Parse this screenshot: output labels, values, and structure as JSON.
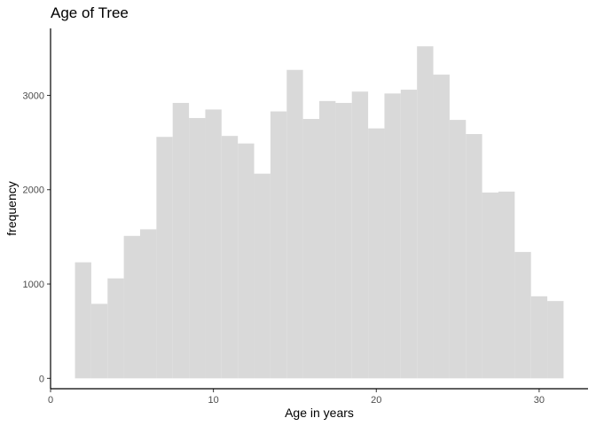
{
  "chart_data": {
    "type": "bar",
    "title": "Age of Tree",
    "xlabel": "Age in years",
    "ylabel": "frequency",
    "bin_width": 1,
    "bins": [
      {
        "x0": 1.5,
        "x1": 2.5,
        "value": 1230
      },
      {
        "x0": 2.5,
        "x1": 3.5,
        "value": 790
      },
      {
        "x0": 3.5,
        "x1": 4.5,
        "value": 1060
      },
      {
        "x0": 4.5,
        "x1": 5.5,
        "value": 1510
      },
      {
        "x0": 5.5,
        "x1": 6.5,
        "value": 1580
      },
      {
        "x0": 6.5,
        "x1": 7.5,
        "value": 2560
      },
      {
        "x0": 7.5,
        "x1": 8.5,
        "value": 2920
      },
      {
        "x0": 8.5,
        "x1": 9.5,
        "value": 2760
      },
      {
        "x0": 9.5,
        "x1": 10.5,
        "value": 2850
      },
      {
        "x0": 10.5,
        "x1": 11.5,
        "value": 2570
      },
      {
        "x0": 11.5,
        "x1": 12.5,
        "value": 2490
      },
      {
        "x0": 12.5,
        "x1": 13.5,
        "value": 2170
      },
      {
        "x0": 13.5,
        "x1": 14.5,
        "value": 2830
      },
      {
        "x0": 14.5,
        "x1": 15.5,
        "value": 3270
      },
      {
        "x0": 15.5,
        "x1": 16.5,
        "value": 2750
      },
      {
        "x0": 16.5,
        "x1": 17.5,
        "value": 2940
      },
      {
        "x0": 17.5,
        "x1": 18.5,
        "value": 2920
      },
      {
        "x0": 18.5,
        "x1": 19.5,
        "value": 3040
      },
      {
        "x0": 19.5,
        "x1": 20.5,
        "value": 2650
      },
      {
        "x0": 20.5,
        "x1": 21.5,
        "value": 3020
      },
      {
        "x0": 21.5,
        "x1": 22.5,
        "value": 3060
      },
      {
        "x0": 22.5,
        "x1": 23.5,
        "value": 3520
      },
      {
        "x0": 23.5,
        "x1": 24.5,
        "value": 3220
      },
      {
        "x0": 24.5,
        "x1": 25.5,
        "value": 2740
      },
      {
        "x0": 25.5,
        "x1": 26.5,
        "value": 2590
      },
      {
        "x0": 26.5,
        "x1": 27.5,
        "value": 1970
      },
      {
        "x0": 27.5,
        "x1": 28.5,
        "value": 1980
      },
      {
        "x0": 28.5,
        "x1": 29.5,
        "value": 1340
      },
      {
        "x0": 29.5,
        "x1": 30.5,
        "value": 870
      },
      {
        "x0": 30.5,
        "x1": 31.5,
        "value": 820
      }
    ],
    "xlim": [
      0,
      33
    ],
    "ylim": [
      -110,
      3710
    ],
    "x_ticks": [
      0,
      10,
      20,
      30
    ],
    "y_ticks": [
      0,
      1000,
      2000,
      3000
    ],
    "x_tick_labels": [
      "0",
      "10",
      "20",
      "30"
    ],
    "y_tick_labels": [
      "0",
      "1000",
      "2000",
      "3000"
    ],
    "bar_color": "#d9d9d9",
    "axis_color": "#000000",
    "grid": false,
    "legend": "none"
  }
}
